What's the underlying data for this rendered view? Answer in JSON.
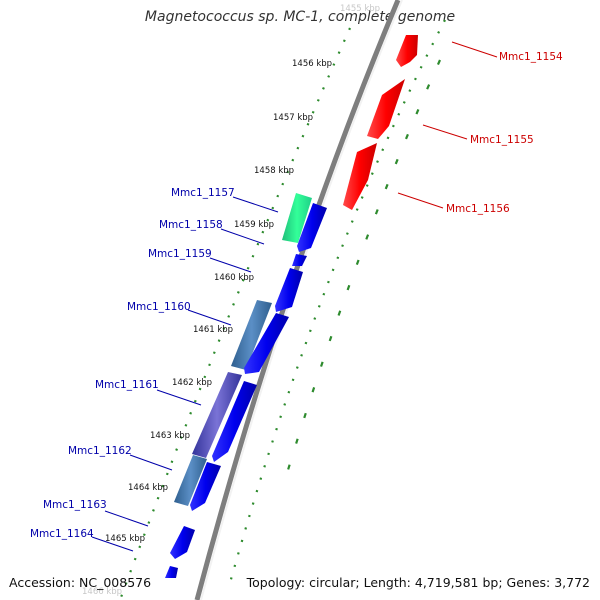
{
  "title": "Magnetococcus sp. MC-1, complete genome",
  "footer": {
    "accession": "Accession: NC_008576",
    "topology": "Topology: circular; Length: 4,719,581 bp; Genes: 3,772"
  },
  "colors": {
    "backbone": "#8c8c8c",
    "tick_dots": "#2e8b2e",
    "forward_gene": "#ff0000",
    "reverse_gene": "#0000ee",
    "forward_label": "#cc0000",
    "reverse_label": "#0000aa"
  },
  "kbp_labels": [
    "1455 kbp",
    "1456 kbp",
    "1457 kbp",
    "1458 kbp",
    "1459 kbp",
    "1460 kbp",
    "1461 kbp",
    "1462 kbp",
    "1463 kbp",
    "1464 kbp",
    "1465 kbp",
    "1466 kbp"
  ],
  "genes": [
    {
      "name": "Mmc1_1154",
      "strand": "forward"
    },
    {
      "name": "Mmc1_1155",
      "strand": "forward"
    },
    {
      "name": "Mmc1_1156",
      "strand": "forward"
    },
    {
      "name": "Mmc1_1157",
      "strand": "reverse"
    },
    {
      "name": "Mmc1_1158",
      "strand": "reverse"
    },
    {
      "name": "Mmc1_1159",
      "strand": "reverse"
    },
    {
      "name": "Mmc1_1160",
      "strand": "reverse"
    },
    {
      "name": "Mmc1_1161",
      "strand": "reverse"
    },
    {
      "name": "Mmc1_1162",
      "strand": "reverse"
    },
    {
      "name": "Mmc1_1163",
      "strand": "reverse"
    },
    {
      "name": "Mmc1_1164",
      "strand": "reverse"
    }
  ]
}
